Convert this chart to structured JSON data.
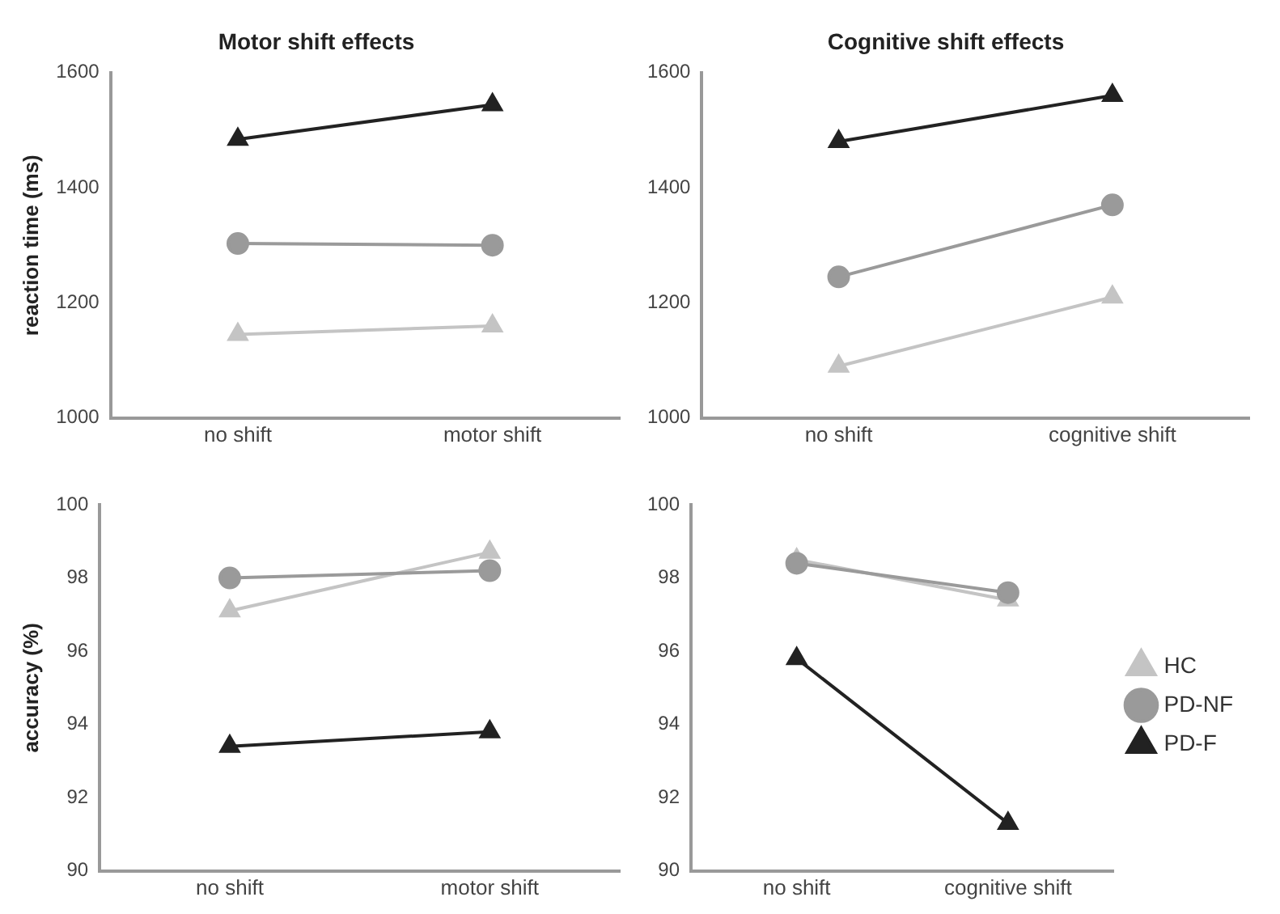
{
  "chart_data": [
    {
      "type": "line",
      "title": "Motor shift effects",
      "ylabel": "reaction time (ms)",
      "categories": [
        "no shift",
        "motor shift"
      ],
      "ylim": [
        1000,
        1600
      ],
      "yticks": [
        1000,
        1200,
        1400,
        1600
      ],
      "grid": false,
      "legend": false,
      "series": [
        {
          "color": "#c4c4c4",
          "marker": "triangle",
          "values": [
            1145,
            1160
          ]
        },
        {
          "color": "#9a9a9a",
          "marker": "circle",
          "values": [
            1303,
            1300
          ]
        },
        {
          "color": "#222222",
          "marker": "triangle",
          "values": [
            1484,
            1544
          ]
        }
      ]
    },
    {
      "type": "line",
      "title": "Cognitive shift effects",
      "categories": [
        "no shift",
        "cognitive shift"
      ],
      "ylim": [
        1000,
        1600
      ],
      "yticks": [
        1000,
        1200,
        1400,
        1600
      ],
      "grid": false,
      "legend": false,
      "series": [
        {
          "color": "#c4c4c4",
          "marker": "triangle",
          "values": [
            1090,
            1210
          ]
        },
        {
          "color": "#9a9a9a",
          "marker": "circle",
          "values": [
            1245,
            1370
          ]
        },
        {
          "color": "#222222",
          "marker": "triangle",
          "values": [
            1480,
            1560
          ]
        }
      ]
    },
    {
      "type": "line",
      "ylabel": "accuracy (%)",
      "categories": [
        "no shift",
        "motor shift"
      ],
      "ylim": [
        90,
        100
      ],
      "yticks": [
        90,
        92,
        94,
        96,
        98,
        100
      ],
      "grid": false,
      "legend": false,
      "series": [
        {
          "color": "#c4c4c4",
          "marker": "triangle",
          "values": [
            97.1,
            98.7
          ]
        },
        {
          "color": "#9a9a9a",
          "marker": "circle",
          "values": [
            98.0,
            98.2
          ]
        },
        {
          "color": "#222222",
          "marker": "triangle",
          "values": [
            93.4,
            93.8
          ]
        }
      ]
    },
    {
      "type": "line",
      "categories": [
        "no shift",
        "cognitive shift"
      ],
      "ylim": [
        90,
        100
      ],
      "yticks": [
        90,
        92,
        94,
        96,
        98,
        100
      ],
      "grid": false,
      "legend": "right",
      "series": [
        {
          "name": "HC",
          "color": "#c4c4c4",
          "marker": "triangle",
          "values": [
            98.5,
            97.4
          ]
        },
        {
          "name": "PD-NF",
          "color": "#9a9a9a",
          "marker": "circle",
          "values": [
            98.4,
            97.6
          ]
        },
        {
          "name": "PD-F",
          "color": "#222222",
          "marker": "triangle",
          "values": [
            95.8,
            91.3
          ]
        }
      ]
    }
  ]
}
